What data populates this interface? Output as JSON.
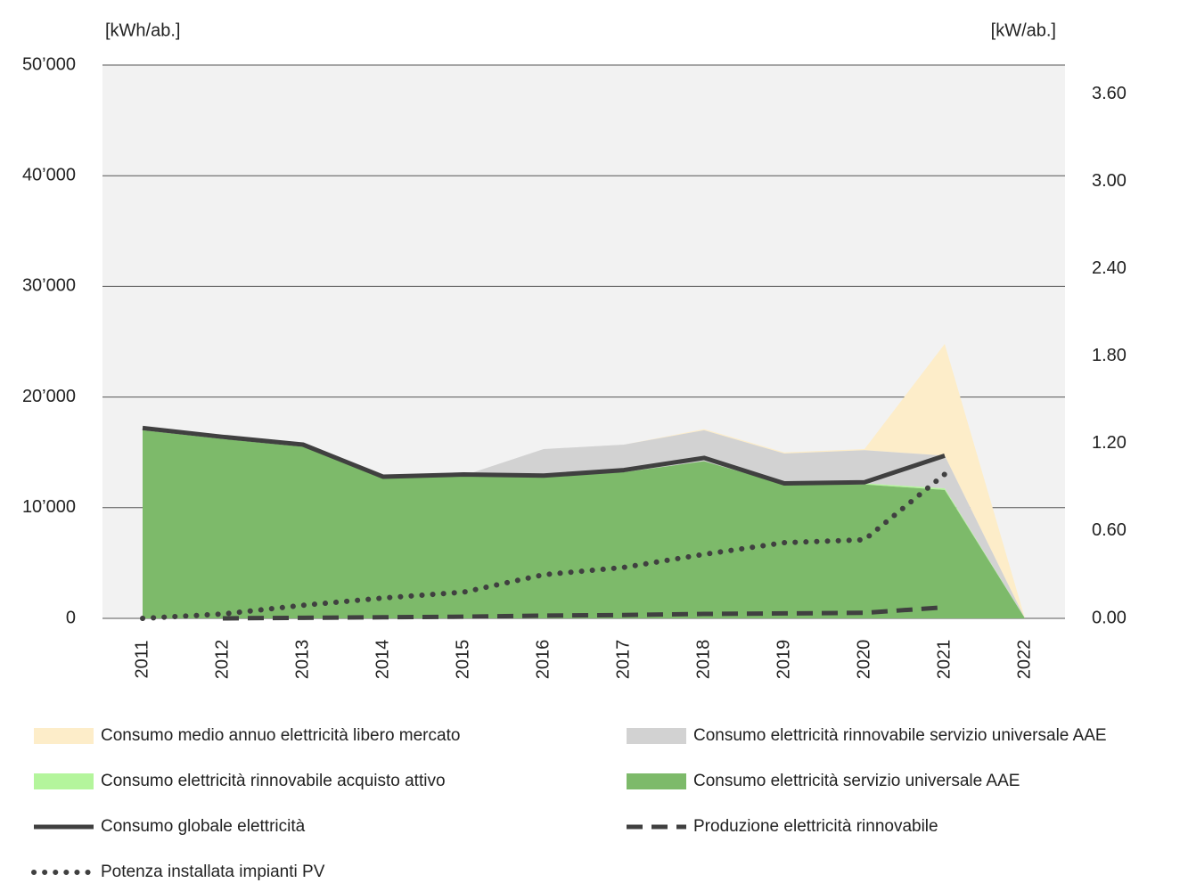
{
  "chart_data": {
    "type": "area-line",
    "y_label": "[kWh/ab.]",
    "y2_label": "[kW/ab.]",
    "categories": [
      "2011",
      "2012",
      "2013",
      "2014",
      "2015",
      "2016",
      "2017",
      "2018",
      "2019",
      "2020",
      "2021",
      "2022"
    ],
    "ylim": [
      0,
      50000
    ],
    "yticks": [
      0,
      {
        "value": 10000,
        "label": "10’000"
      },
      {
        "value": 20000,
        "label": "20’000"
      },
      {
        "value": 30000,
        "label": "30’000"
      },
      {
        "value": 40000,
        "label": "40’000"
      },
      {
        "value": 50000,
        "label": "50’000"
      }
    ],
    "y2lim": [
      0,
      3.8
    ],
    "y2ticks": [
      {
        "value": 0,
        "label": "0.00"
      },
      {
        "value": 0.6,
        "label": "0.60"
      },
      {
        "value": 1.2,
        "label": "1.20"
      },
      {
        "value": 1.8,
        "label": "1.80"
      },
      {
        "value": 2.4,
        "label": "2.40"
      },
      {
        "value": 3.0,
        "label": "3.00"
      },
      {
        "value": 3.6,
        "label": "3.60"
      }
    ],
    "grid": true,
    "series": [
      {
        "name": "Consumo medio annuo elettricità libero mercato",
        "kind": "area",
        "color": "#fdedc9",
        "values": [
          0,
          0,
          0,
          0,
          0,
          0,
          0,
          100,
          100,
          100,
          10100,
          0
        ]
      },
      {
        "name": "Consumo elettricità rinnovabile servizio universale AAE",
        "kind": "area",
        "color": "#d2d2d2",
        "values": [
          0,
          0,
          0,
          0,
          0,
          2500,
          2500,
          2800,
          2800,
          3000,
          2950,
          0
        ]
      },
      {
        "name": "Consumo elettricità rinnovabile acquisto attivo",
        "kind": "area",
        "color": "#b4f59c",
        "values": [
          0,
          0,
          0,
          0,
          0,
          0,
          0,
          0,
          0,
          100,
          150,
          0
        ]
      },
      {
        "name": "Consumo elettricità servizio universale AAE",
        "kind": "area",
        "color": "#7dba6a",
        "values": [
          17000,
          16200,
          15500,
          12700,
          12900,
          12800,
          13200,
          14200,
          12100,
          12100,
          11600,
          0
        ]
      },
      {
        "name": "Consumo globale elettricità",
        "kind": "line",
        "dash": "solid",
        "color": "#404040",
        "values": [
          17200,
          16400,
          15700,
          12800,
          13000,
          12900,
          13400,
          14500,
          12200,
          12300,
          14700,
          null
        ]
      },
      {
        "name": "Produzione elettricità rinnovabile",
        "kind": "line",
        "dash": "dashed",
        "color": "#404040",
        "values": [
          null,
          0,
          50,
          100,
          150,
          250,
          300,
          400,
          450,
          500,
          1000,
          null
        ]
      },
      {
        "name": "Potenza installata impianti PV",
        "kind": "line",
        "dash": "dotted",
        "axis": "y2",
        "color": "#404040",
        "values": [
          0,
          0.03,
          0.09,
          0.14,
          0.18,
          0.3,
          0.35,
          0.44,
          0.52,
          0.54,
          0.99,
          null
        ]
      }
    ]
  }
}
